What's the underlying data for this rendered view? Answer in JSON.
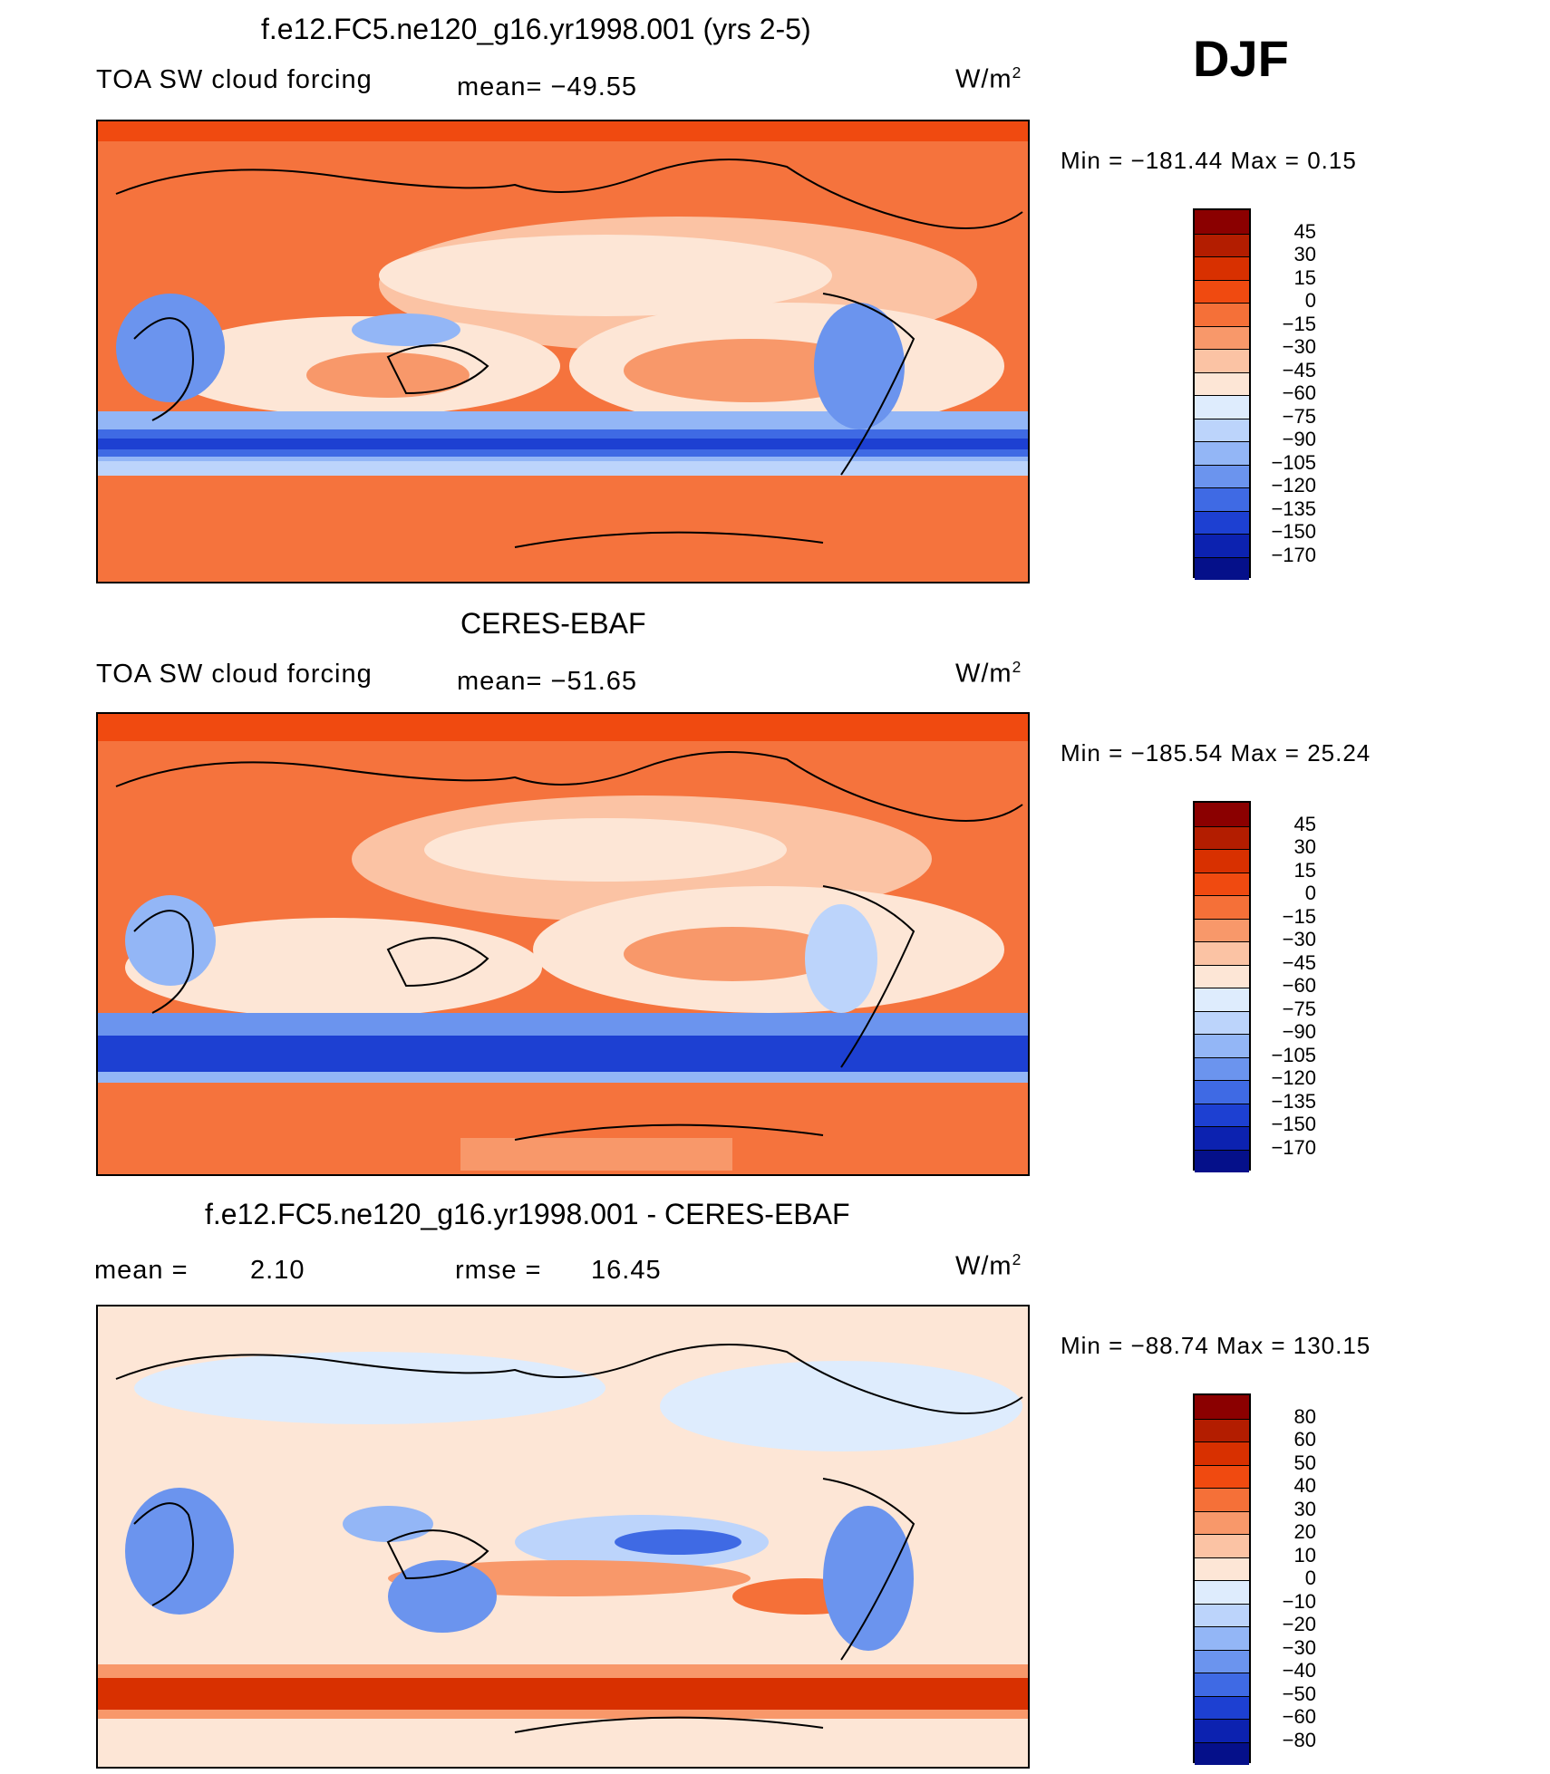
{
  "season": "DJF",
  "panels": [
    {
      "id": "model",
      "title": "f.e12.FC5.ne120_g16.yr1998.001 (yrs 2-5)",
      "variable": "TOA SW cloud forcing",
      "stat": "mean= −49.55",
      "units": "W/m",
      "units_exp": "2",
      "minmax": "Min  =  −181.44  Max  =     0.15",
      "colorbar": {
        "labels": [
          "45",
          "30",
          "15",
          "0",
          "−15",
          "−30",
          "−45",
          "−60",
          "−75",
          "−90",
          "−105",
          "−120",
          "−135",
          "−150",
          "−170"
        ],
        "colors": [
          "#8b0000",
          "#b31d00",
          "#d83000",
          "#f04a10",
          "#f57038",
          "#f8986a",
          "#fbc3a4",
          "#fde6d6",
          "#deecfd",
          "#bcd4fb",
          "#93b6f6",
          "#6b94ee",
          "#3f6ae4",
          "#1d40d2",
          "#0c22b0",
          "#05108a"
        ]
      }
    },
    {
      "id": "obs",
      "title": "CERES-EBAF",
      "variable": "TOA SW cloud forcing",
      "stat": "mean= −51.65",
      "units": "W/m",
      "units_exp": "2",
      "minmax": "Min  =  −185.54  Max  =    25.24",
      "colorbar": {
        "labels": [
          "45",
          "30",
          "15",
          "0",
          "−15",
          "−30",
          "−45",
          "−60",
          "−75",
          "−90",
          "−105",
          "−120",
          "−135",
          "−150",
          "−170"
        ],
        "colors": [
          "#8b0000",
          "#b31d00",
          "#d83000",
          "#f04a10",
          "#f57038",
          "#f8986a",
          "#fbc3a4",
          "#fde6d6",
          "#deecfd",
          "#bcd4fb",
          "#93b6f6",
          "#6b94ee",
          "#3f6ae4",
          "#1d40d2",
          "#0c22b0",
          "#05108a"
        ]
      }
    },
    {
      "id": "diff",
      "title": "f.e12.FC5.ne120_g16.yr1998.001 - CERES-EBAF",
      "mean_label": "mean  =",
      "mean_value": "2.10",
      "rmse_label": "rmse  =",
      "rmse_value": "16.45",
      "units": "W/m",
      "units_exp": "2",
      "minmax": "Min  =  −88.74  Max  =  130.15",
      "colorbar": {
        "labels": [
          "80",
          "60",
          "50",
          "40",
          "30",
          "20",
          "10",
          "0",
          "−10",
          "−20",
          "−30",
          "−40",
          "−50",
          "−60",
          "−80"
        ],
        "colors": [
          "#8b0000",
          "#b31d00",
          "#d83000",
          "#f04a10",
          "#f57038",
          "#f8986a",
          "#fbc3a4",
          "#fde6d6",
          "#deecfd",
          "#bcd4fb",
          "#93b6f6",
          "#6b94ee",
          "#3f6ae4",
          "#1d40d2",
          "#0c22b0",
          "#05108a"
        ]
      }
    }
  ]
}
